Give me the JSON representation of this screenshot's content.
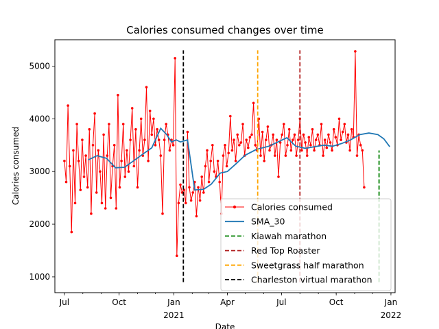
{
  "chart_data": {
    "type": "line",
    "title": "Calories consumed changes over time",
    "xlabel": "Date",
    "ylabel": "Calories consumed",
    "x_range": [
      "2020-06-15",
      "2022-01-08"
    ],
    "ylim": [
      700,
      5500
    ],
    "grid": false,
    "legend_placement": "lower-right",
    "x_ticks": [
      {
        "date": "2020-07-01",
        "label": "Jul",
        "year": ""
      },
      {
        "date": "2020-10-01",
        "label": "Oct",
        "year": ""
      },
      {
        "date": "2021-01-01",
        "label": "Jan",
        "year": "2021"
      },
      {
        "date": "2021-04-01",
        "label": "Apr",
        "year": ""
      },
      {
        "date": "2021-07-01",
        "label": "Jul",
        "year": ""
      },
      {
        "date": "2021-10-01",
        "label": "Oct",
        "year": ""
      },
      {
        "date": "2022-01-01",
        "label": "Jan",
        "year": "2022"
      }
    ],
    "y_ticks": [
      1000,
      2000,
      3000,
      4000,
      5000
    ],
    "series": [
      {
        "name": "Calories consumed",
        "color": "#ff0000",
        "marker": "dot",
        "start_date": "2020-07-01",
        "step_days": 3,
        "values": [
          3200,
          2800,
          4250,
          3100,
          1850,
          3400,
          2400,
          3900,
          3200,
          2650,
          3600,
          2900,
          3300,
          2700,
          3800,
          2200,
          3500,
          4100,
          2600,
          3400,
          3000,
          2400,
          3700,
          2300,
          3300,
          3900,
          2500,
          3100,
          3500,
          2300,
          4450,
          2700,
          3200,
          3900,
          2900,
          3400,
          3000,
          3600,
          4200,
          3100,
          3800,
          2700,
          3400,
          4000,
          3300,
          3600,
          4600,
          3200,
          4150,
          3700,
          4000,
          3500,
          3800,
          3600,
          3300,
          2200,
          3600,
          3900,
          3700,
          3400,
          3600,
          3500,
          5150,
          1400,
          2400,
          2750,
          2600,
          2650,
          2400,
          3750,
          2700,
          2450,
          2600,
          2800,
          2150,
          2700,
          2450,
          2900,
          2600,
          3100,
          3400,
          2800,
          3200,
          3500,
          3000,
          2900,
          3200,
          2800,
          2200,
          3300,
          3500,
          3100,
          3350,
          4050,
          3400,
          3600,
          3200,
          3700,
          3500,
          3550,
          3900,
          3300,
          3600,
          3450,
          3650,
          3700,
          4300,
          3500,
          3400,
          4000,
          3300,
          3750,
          3200,
          3600,
          3850,
          3400,
          3500,
          3700,
          3300,
          3600,
          2900,
          3550,
          3700,
          3900,
          3300,
          3500,
          3800,
          3400,
          3600,
          3700,
          3300,
          3600,
          4000,
          3400,
          3700,
          3550,
          3300,
          3650,
          3500,
          3800,
          3400,
          3600,
          3700,
          3500,
          3900,
          3300,
          3600,
          3450,
          3700,
          3550,
          3400,
          3800,
          3650,
          3500,
          4000,
          3600,
          3750,
          3900,
          3550,
          3700,
          3400,
          3800,
          3650,
          5280,
          3300,
          3700,
          3500,
          3400,
          2700
        ]
      },
      {
        "name": "SMA_30",
        "color": "#1f77b4",
        "start_date": "2020-08-10",
        "points": [
          [
            "2020-08-10",
            3220
          ],
          [
            "2020-08-25",
            3300
          ],
          [
            "2020-09-10",
            3250
          ],
          [
            "2020-09-25",
            3070
          ],
          [
            "2020-10-10",
            3080
          ],
          [
            "2020-10-25",
            3200
          ],
          [
            "2020-11-10",
            3330
          ],
          [
            "2020-11-25",
            3450
          ],
          [
            "2020-12-10",
            3820
          ],
          [
            "2020-12-20",
            3700
          ],
          [
            "2020-12-28",
            3560
          ],
          [
            "2021-01-05",
            3600
          ],
          [
            "2021-01-12",
            3560
          ],
          [
            "2021-01-18",
            3580
          ],
          [
            "2021-01-24",
            3600
          ],
          [
            "2021-02-05",
            2650
          ],
          [
            "2021-02-20",
            2660
          ],
          [
            "2021-03-05",
            2760
          ],
          [
            "2021-03-20",
            2970
          ],
          [
            "2021-04-01",
            3000
          ],
          [
            "2021-04-15",
            3140
          ],
          [
            "2021-05-01",
            3310
          ],
          [
            "2021-05-20",
            3420
          ],
          [
            "2021-06-10",
            3480
          ],
          [
            "2021-06-25",
            3560
          ],
          [
            "2021-07-10",
            3640
          ],
          [
            "2021-07-25",
            3480
          ],
          [
            "2021-08-10",
            3440
          ],
          [
            "2021-08-25",
            3470
          ],
          [
            "2021-09-10",
            3500
          ],
          [
            "2021-09-25",
            3480
          ],
          [
            "2021-10-10",
            3530
          ],
          [
            "2021-10-25",
            3600
          ],
          [
            "2021-11-10",
            3700
          ],
          [
            "2021-11-25",
            3730
          ],
          [
            "2021-12-10",
            3700
          ],
          [
            "2021-12-20",
            3620
          ],
          [
            "2021-12-30",
            3470
          ]
        ]
      }
    ],
    "vlines": [
      {
        "name": "Kiawah marathon",
        "color": "#008000",
        "date": "2021-12-12",
        "ymin": 900,
        "ymax": 3400
      },
      {
        "name": "Red Top Roaster",
        "color": "#b22222",
        "date": "2021-08-01",
        "ymin": 900,
        "ymax": 5300
      },
      {
        "name": "Sweetgrass half marathon",
        "color": "#ffa500",
        "date": "2021-05-22",
        "ymin": 900,
        "ymax": 5300
      },
      {
        "name": "Charleston virtual marathon",
        "color": "#000000",
        "date": "2021-01-17",
        "ymin": 900,
        "ymax": 5300
      }
    ],
    "legend_order": [
      "Calories consumed",
      "SMA_30",
      "Kiawah marathon",
      "Red Top Roaster",
      "Sweetgrass half marathon",
      "Charleston virtual marathon"
    ]
  }
}
